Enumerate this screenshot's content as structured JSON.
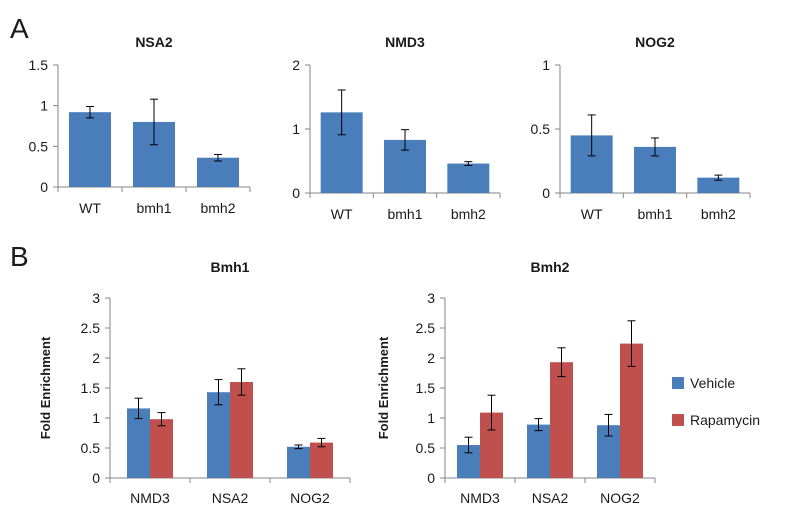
{
  "panels": {
    "a": "A",
    "b": "B"
  },
  "colors": {
    "vehicle": "#4a7ebb",
    "rapamycin": "#c0504d",
    "axis": "#868686",
    "error": "#000000"
  },
  "legend": {
    "items": [
      "Vehicle",
      "Rapamycin"
    ]
  },
  "chart_data": [
    {
      "type": "bar",
      "title": "NSA2",
      "categories": [
        "WT",
        "bmh1",
        "bmh2"
      ],
      "series": [
        {
          "values": [
            0.92,
            0.8,
            0.36
          ],
          "errors": [
            0.07,
            0.28,
            0.04
          ]
        }
      ],
      "ylabel": "",
      "ylim": [
        0,
        1.5
      ],
      "yticks": [
        "0",
        "0.5",
        "1",
        "1.5"
      ],
      "grid": false
    },
    {
      "type": "bar",
      "title": "NMD3",
      "categories": [
        "WT",
        "bmh1",
        "bmh2"
      ],
      "series": [
        {
          "values": [
            1.26,
            0.83,
            0.46
          ],
          "errors": [
            0.35,
            0.16,
            0.03
          ]
        }
      ],
      "ylabel": "",
      "ylim": [
        0,
        2
      ],
      "yticks": [
        "0",
        "1",
        "2"
      ],
      "grid": false
    },
    {
      "type": "bar",
      "title": "NOG2",
      "categories": [
        "WT",
        "bmh1",
        "bmh2"
      ],
      "series": [
        {
          "values": [
            0.45,
            0.36,
            0.12
          ],
          "errors": [
            0.16,
            0.07,
            0.02
          ]
        }
      ],
      "ylabel": "",
      "ylim": [
        0,
        1
      ],
      "yticks": [
        "0",
        "0.5",
        "1"
      ],
      "grid": false
    },
    {
      "type": "bar",
      "title": "Bmh1",
      "categories": [
        "NMD3",
        "NSA2",
        "NOG2"
      ],
      "series": [
        {
          "name": "Vehicle",
          "values": [
            1.16,
            1.43,
            0.52
          ],
          "errors": [
            0.17,
            0.21,
            0.03
          ]
        },
        {
          "name": "Rapamycin",
          "values": [
            0.98,
            1.6,
            0.59
          ],
          "errors": [
            0.11,
            0.22,
            0.07
          ]
        }
      ],
      "ylabel": "Fold Enrichment",
      "ylim": [
        0,
        3
      ],
      "yticks": [
        "0",
        "0.5",
        "1",
        "1.5",
        "2",
        "2.5",
        "3"
      ],
      "grid": false
    },
    {
      "type": "bar",
      "title": "Bmh2",
      "categories": [
        "NMD3",
        "NSA2",
        "NOG2"
      ],
      "series": [
        {
          "name": "Vehicle",
          "values": [
            0.55,
            0.89,
            0.88
          ],
          "errors": [
            0.13,
            0.1,
            0.18
          ]
        },
        {
          "name": "Rapamycin",
          "values": [
            1.09,
            1.93,
            2.24
          ],
          "errors": [
            0.29,
            0.24,
            0.38
          ]
        }
      ],
      "ylabel": "Fold Enrichment",
      "ylim": [
        0,
        3
      ],
      "yticks": [
        "0",
        "0.5",
        "1",
        "1.5",
        "2",
        "2.5",
        "3"
      ],
      "grid": false
    }
  ]
}
